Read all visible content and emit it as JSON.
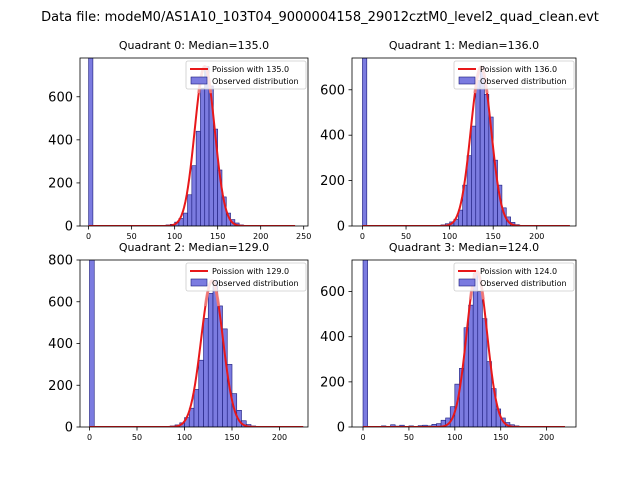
{
  "figure": {
    "suptitle": "Data file: modeM0/AS1A10_103T04_9000004158_29012cztM0_level2_quad_clean.evt"
  },
  "colors": {
    "bar_fill": "#7b7be0",
    "bar_edge": "#1a1a7a",
    "curve": "#e8181a",
    "curve_highlight": "#f08080"
  },
  "chart_data": [
    {
      "type": "bar",
      "title": "Quadrant 0: Median=135.0",
      "median": 135.0,
      "xlim": [
        -10,
        255
      ],
      "ylim": [
        0,
        780
      ],
      "xticks": [
        0,
        50,
        100,
        150,
        200,
        250
      ],
      "yticks": [
        0,
        200,
        400,
        600
      ],
      "legend": [
        "Poission with 135.0",
        "Observed distribution"
      ],
      "legend_position": "top-right",
      "bin_width": 5,
      "bins": [
        {
          "x": 0,
          "h": 780
        },
        {
          "x": 85,
          "h": 3
        },
        {
          "x": 90,
          "h": 5
        },
        {
          "x": 95,
          "h": 8
        },
        {
          "x": 100,
          "h": 18
        },
        {
          "x": 105,
          "h": 35
        },
        {
          "x": 110,
          "h": 60
        },
        {
          "x": 115,
          "h": 145
        },
        {
          "x": 120,
          "h": 280
        },
        {
          "x": 125,
          "h": 440
        },
        {
          "x": 130,
          "h": 640
        },
        {
          "x": 135,
          "h": 740
        },
        {
          "x": 140,
          "h": 650
        },
        {
          "x": 145,
          "h": 450
        },
        {
          "x": 150,
          "h": 260
        },
        {
          "x": 155,
          "h": 135
        },
        {
          "x": 160,
          "h": 60
        },
        {
          "x": 165,
          "h": 30
        },
        {
          "x": 170,
          "h": 14
        },
        {
          "x": 175,
          "h": 5
        },
        {
          "x": 180,
          "h": 2
        }
      ],
      "curve_peak": 740,
      "curve_sigma": 11.6,
      "curve_range": [
        0,
        240
      ]
    },
    {
      "type": "bar",
      "title": "Quadrant 1: Median=136.0",
      "median": 136.0,
      "xlim": [
        -12,
        245
      ],
      "ylim": [
        0,
        740
      ],
      "xticks": [
        0,
        50,
        100,
        150,
        200
      ],
      "yticks": [
        0,
        200,
        400,
        600
      ],
      "legend": [
        "Poission with 136.0",
        "Observed distribution"
      ],
      "legend_position": "top-right",
      "bin_width": 5,
      "bins": [
        {
          "x": 0,
          "h": 740
        },
        {
          "x": 85,
          "h": 3
        },
        {
          "x": 90,
          "h": 5
        },
        {
          "x": 95,
          "h": 10
        },
        {
          "x": 100,
          "h": 18
        },
        {
          "x": 105,
          "h": 30
        },
        {
          "x": 110,
          "h": 70
        },
        {
          "x": 115,
          "h": 180
        },
        {
          "x": 120,
          "h": 310
        },
        {
          "x": 125,
          "h": 440
        },
        {
          "x": 130,
          "h": 640
        },
        {
          "x": 135,
          "h": 700
        },
        {
          "x": 140,
          "h": 580
        },
        {
          "x": 145,
          "h": 480
        },
        {
          "x": 150,
          "h": 290
        },
        {
          "x": 155,
          "h": 180
        },
        {
          "x": 160,
          "h": 80
        },
        {
          "x": 165,
          "h": 40
        },
        {
          "x": 170,
          "h": 16
        },
        {
          "x": 175,
          "h": 6
        },
        {
          "x": 180,
          "h": 2
        }
      ],
      "curve_peak": 700,
      "curve_sigma": 11.7,
      "curve_range": [
        0,
        238
      ]
    },
    {
      "type": "bar",
      "title": "Quadrant 2: Median=129.0",
      "median": 129.0,
      "xlim": [
        -10,
        230
      ],
      "ylim": [
        0,
        800
      ],
      "xticks": [
        0,
        50,
        100,
        150,
        200
      ],
      "yticks": [
        0,
        200,
        400,
        600,
        800
      ],
      "legend": [
        "Poission with 129.0",
        "Observed distribution"
      ],
      "legend_position": "top-right",
      "bin_width": 5,
      "bins": [
        {
          "x": 0,
          "h": 800
        },
        {
          "x": 80,
          "h": 3
        },
        {
          "x": 85,
          "h": 5
        },
        {
          "x": 90,
          "h": 10
        },
        {
          "x": 95,
          "h": 20
        },
        {
          "x": 100,
          "h": 45
        },
        {
          "x": 105,
          "h": 90
        },
        {
          "x": 110,
          "h": 180
        },
        {
          "x": 115,
          "h": 320
        },
        {
          "x": 120,
          "h": 520
        },
        {
          "x": 125,
          "h": 640
        },
        {
          "x": 130,
          "h": 700
        },
        {
          "x": 135,
          "h": 580
        },
        {
          "x": 140,
          "h": 470
        },
        {
          "x": 145,
          "h": 300
        },
        {
          "x": 150,
          "h": 160
        },
        {
          "x": 155,
          "h": 80
        },
        {
          "x": 160,
          "h": 30
        },
        {
          "x": 165,
          "h": 12
        },
        {
          "x": 170,
          "h": 5
        },
        {
          "x": 175,
          "h": 2
        }
      ],
      "curve_peak": 700,
      "curve_sigma": 11.4,
      "curve_range": [
        0,
        225
      ]
    },
    {
      "type": "bar",
      "title": "Quadrant 3: Median=124.0",
      "median": 124.0,
      "xlim": [
        -12,
        232
      ],
      "ylim": [
        0,
        740
      ],
      "xticks": [
        0,
        50,
        100,
        150,
        200
      ],
      "yticks": [
        0,
        200,
        400,
        600
      ],
      "legend": [
        "Poission with 124.0",
        "Observed distribution"
      ],
      "legend_position": "top-right",
      "bin_width": 5,
      "bins": [
        {
          "x": 0,
          "h": 740
        },
        {
          "x": 10,
          "h": 3
        },
        {
          "x": 20,
          "h": 5
        },
        {
          "x": 30,
          "h": 10
        },
        {
          "x": 35,
          "h": 4
        },
        {
          "x": 40,
          "h": 8
        },
        {
          "x": 50,
          "h": 5
        },
        {
          "x": 60,
          "h": 6
        },
        {
          "x": 65,
          "h": 8
        },
        {
          "x": 70,
          "h": 5
        },
        {
          "x": 75,
          "h": 12
        },
        {
          "x": 80,
          "h": 15
        },
        {
          "x": 85,
          "h": 30
        },
        {
          "x": 90,
          "h": 40
        },
        {
          "x": 95,
          "h": 90
        },
        {
          "x": 100,
          "h": 190
        },
        {
          "x": 105,
          "h": 260
        },
        {
          "x": 110,
          "h": 440
        },
        {
          "x": 115,
          "h": 540
        },
        {
          "x": 120,
          "h": 680
        },
        {
          "x": 125,
          "h": 600
        },
        {
          "x": 130,
          "h": 480
        },
        {
          "x": 135,
          "h": 290
        },
        {
          "x": 140,
          "h": 170
        },
        {
          "x": 145,
          "h": 80
        },
        {
          "x": 150,
          "h": 40
        },
        {
          "x": 155,
          "h": 20
        },
        {
          "x": 160,
          "h": 10
        },
        {
          "x": 165,
          "h": 5
        },
        {
          "x": 170,
          "h": 3
        },
        {
          "x": 175,
          "h": 2
        }
      ],
      "curve_peak": 690,
      "curve_sigma": 11.1,
      "curve_range": [
        0,
        220
      ]
    }
  ]
}
